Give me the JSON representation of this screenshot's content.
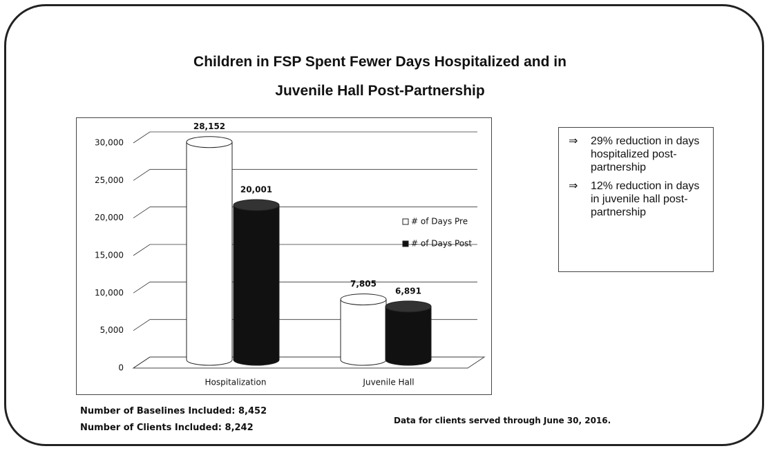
{
  "chart_data": {
    "type": "bar3d",
    "title": [
      "Children in FSP Spent Fewer Days Hospitalized and in",
      "Juvenile Hall Post-Partnership"
    ],
    "categories": [
      "Hospitalization",
      "Juvenile Hall"
    ],
    "series": [
      {
        "name": "# of Days Pre",
        "color": "#ffffff",
        "values": [
          28152,
          7805
        ],
        "value_labels": [
          "28,152",
          "7,805"
        ]
      },
      {
        "name": "# of Days Post",
        "color": "#111111",
        "values": [
          20001,
          6891
        ],
        "value_labels": [
          "20,001",
          "6,891"
        ]
      }
    ],
    "ylim": [
      0,
      30000
    ],
    "yticks": [
      0,
      {
        "value": 5000,
        "label": "5,000"
      },
      {
        "value": 10000,
        "label": "10,000"
      },
      {
        "value": 15000,
        "label": "15,000"
      },
      {
        "value": 20000,
        "label": "20,000"
      },
      {
        "value": 25000,
        "label": "25,000"
      },
      {
        "value": 30000,
        "label": "30,000"
      }
    ],
    "grid": true,
    "legend": "right"
  },
  "notes": {
    "marker": "⇒",
    "items": [
      "29% reduction in days hospitalized post-partnership",
      "12% reduction in days in juvenile hall post-partnership"
    ]
  },
  "footer": {
    "baselines": "Number of Baselines Included: 8,452",
    "clients": "Number of Clients Included: 8,242",
    "data_note": "Data for clients served through June 30, 2016."
  }
}
